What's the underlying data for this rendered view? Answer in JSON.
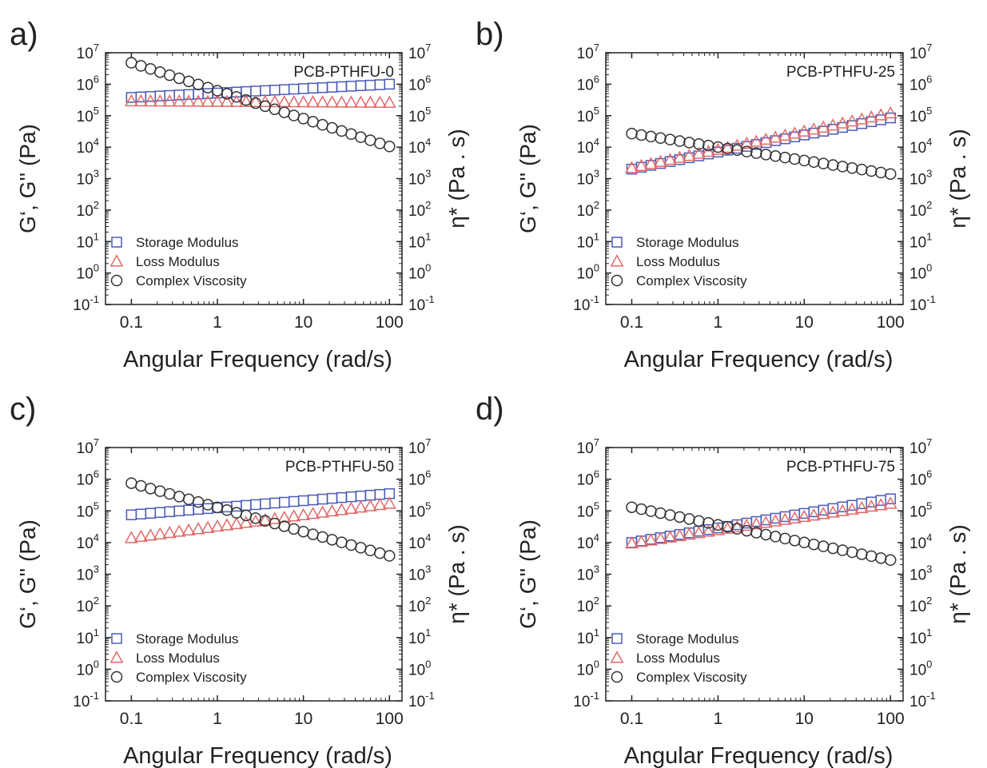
{
  "panel_layout_note": "",
  "chart_data": [
    {
      "type": "scatter",
      "panel_label": "a)",
      "sample_label": "PCB-PTHFU-0",
      "xlabel": "Angular Frequency (rad/s)",
      "ylabel_left": "G‘, G'' (Pa)",
      "ylabel_right": "η* (Pa . s)",
      "x_scale": "log",
      "y_scale": "log",
      "xlim": [
        0.05,
        140
      ],
      "ylim": [
        0.1,
        10000000
      ],
      "x_ticks": [
        "0.1",
        "1",
        "10",
        "100"
      ],
      "legend": {
        "position": "bottom-left",
        "entries": [
          "Storage Modulus",
          "Loss Modulus",
          "Complex Viscosity"
        ]
      },
      "points_per_series": 28,
      "series": [
        {
          "name": "Storage Modulus",
          "marker": "square",
          "color": "#4a5bb8",
          "x_range": [
            0.1,
            100
          ],
          "y_start": 380000,
          "y_end": 1000000
        },
        {
          "name": "Loss Modulus",
          "marker": "triangle",
          "color": "#e06a6a",
          "x_range": [
            0.1,
            100
          ],
          "y_start": 290000,
          "y_end": 260000
        },
        {
          "name": "Complex Viscosity",
          "marker": "circle",
          "color": "#333333",
          "x_range": [
            0.1,
            100
          ],
          "y_start": 4800000,
          "y_end": 10500
        }
      ]
    },
    {
      "type": "scatter",
      "panel_label": "b)",
      "sample_label": "PCB-PTHFU-25",
      "xlabel": "Angular Frequency (rad/s)",
      "ylabel_left": "G‘, G'' (Pa)",
      "ylabel_right": "η* (Pa . s)",
      "x_scale": "log",
      "y_scale": "log",
      "xlim": [
        0.05,
        140
      ],
      "ylim": [
        0.1,
        10000000
      ],
      "x_ticks": [
        "0.1",
        "1",
        "10",
        "100"
      ],
      "legend": {
        "position": "bottom-left",
        "entries": [
          "Storage Modulus",
          "Loss Modulus",
          "Complex Viscosity"
        ]
      },
      "points_per_series": 28,
      "series": [
        {
          "name": "Storage Modulus",
          "marker": "square",
          "color": "#4a5bb8",
          "x_range": [
            0.1,
            100
          ],
          "y_start": 2000,
          "y_end": 85000
        },
        {
          "name": "Loss Modulus",
          "marker": "triangle",
          "color": "#e06a6a",
          "x_range": [
            0.1,
            100
          ],
          "y_start": 2200,
          "y_end": 120000
        },
        {
          "name": "Complex Viscosity",
          "marker": "circle",
          "color": "#333333",
          "x_range": [
            0.1,
            100
          ],
          "y_start": 27000,
          "y_end": 1400
        }
      ]
    },
    {
      "type": "scatter",
      "panel_label": "c)",
      "sample_label": "PCB-PTHFU-50",
      "xlabel": "Angular Frequency (rad/s)",
      "ylabel_left": "G‘, G'' (Pa)",
      "ylabel_right": "η* (Pa . s)",
      "x_scale": "log",
      "y_scale": "log",
      "xlim": [
        0.05,
        140
      ],
      "ylim": [
        0.1,
        10000000
      ],
      "x_ticks": [
        "0.1",
        "1",
        "10",
        "100"
      ],
      "legend": {
        "position": "bottom-left",
        "entries": [
          "Storage Modulus",
          "Loss Modulus",
          "Complex Viscosity"
        ]
      },
      "points_per_series": 28,
      "series": [
        {
          "name": "Storage Modulus",
          "marker": "square",
          "color": "#4a5bb8",
          "x_range": [
            0.1,
            100
          ],
          "y_start": 75000,
          "y_end": 350000
        },
        {
          "name": "Loss Modulus",
          "marker": "triangle",
          "color": "#e06a6a",
          "x_range": [
            0.1,
            100
          ],
          "y_start": 14000,
          "y_end": 170000
        },
        {
          "name": "Complex Viscosity",
          "marker": "circle",
          "color": "#333333",
          "x_range": [
            0.1,
            100
          ],
          "y_start": 750000,
          "y_end": 3800
        }
      ]
    },
    {
      "type": "scatter",
      "panel_label": "d)",
      "sample_label": "PCB-PTHFU-75",
      "xlabel": "Angular Frequency (rad/s)",
      "ylabel_left": "G‘, G'' (Pa)",
      "ylabel_right": "η* (Pa . s)",
      "x_scale": "log",
      "y_scale": "log",
      "xlim": [
        0.05,
        140
      ],
      "ylim": [
        0.1,
        10000000
      ],
      "x_ticks": [
        "0.1",
        "1",
        "10",
        "100"
      ],
      "legend": {
        "position": "bottom-left",
        "entries": [
          "Storage Modulus",
          "Loss Modulus",
          "Complex Viscosity"
        ]
      },
      "points_per_series": 28,
      "series": [
        {
          "name": "Storage Modulus",
          "marker": "square",
          "color": "#4a5bb8",
          "x_range": [
            0.1,
            100
          ],
          "y_start": 10000,
          "y_end": 240000
        },
        {
          "name": "Loss Modulus",
          "marker": "triangle",
          "color": "#e06a6a",
          "x_range": [
            0.1,
            100
          ],
          "y_start": 9500,
          "y_end": 170000
        },
        {
          "name": "Complex Viscosity",
          "marker": "circle",
          "color": "#333333",
          "x_range": [
            0.1,
            100
          ],
          "y_start": 130000,
          "y_end": 2800
        }
      ]
    }
  ]
}
